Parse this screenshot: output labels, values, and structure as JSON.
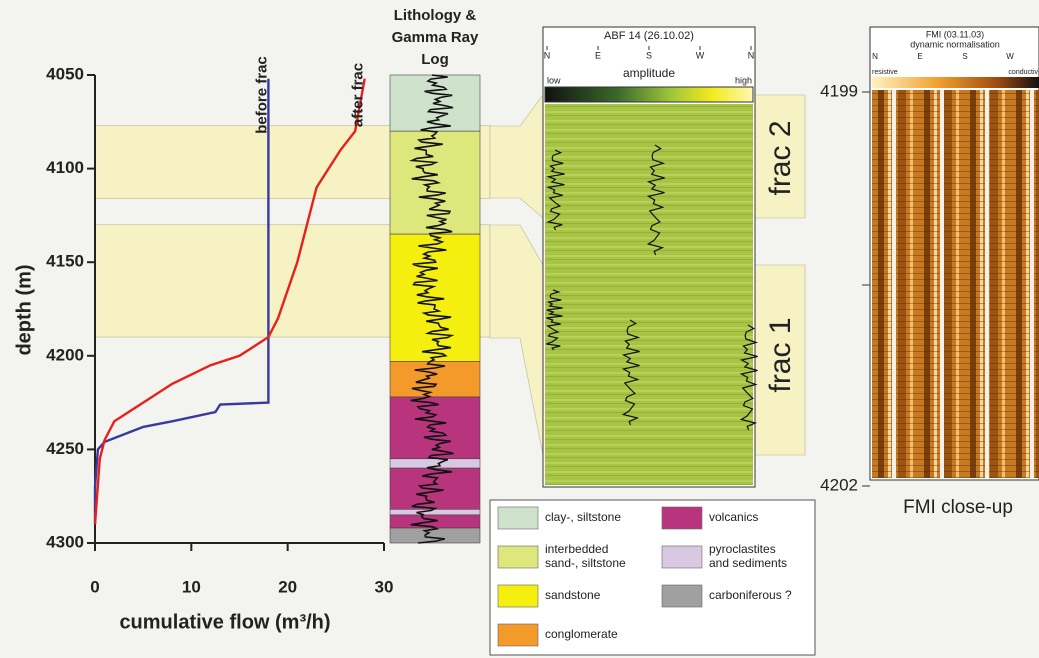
{
  "chart_data": {
    "type": "line",
    "xlabel": "cumulative flow (m³/h)",
    "ylabel": "depth (m)",
    "xlim": [
      0,
      30
    ],
    "ylim": [
      4050,
      4300
    ],
    "y_inverted": true,
    "xticks": [
      0,
      10,
      20,
      30
    ],
    "yticks": [
      4050,
      4100,
      4150,
      4200,
      4250,
      4300
    ],
    "shaded_depths": [
      [
        4077,
        4116
      ],
      [
        4130,
        4190
      ]
    ],
    "series": [
      {
        "name": "before frac",
        "color": "#3a3a9e",
        "x": [
          18,
          18,
          13,
          12.5,
          8,
          5,
          3,
          1,
          0.3,
          0,
          0
        ],
        "y": [
          4052,
          4225,
          4226,
          4230,
          4235,
          4238,
          4242,
          4246,
          4250,
          4270,
          4290
        ]
      },
      {
        "name": "after frac",
        "color": "#e8201c",
        "x": [
          28,
          27,
          25.5,
          23,
          21,
          19,
          18,
          15,
          12,
          8,
          5,
          2,
          1,
          0.5,
          0
        ],
        "y": [
          4052,
          4080,
          4090,
          4110,
          4150,
          4180,
          4190,
          4200,
          4205,
          4215,
          4225,
          4235,
          4245,
          4255,
          4290
        ]
      }
    ]
  },
  "lithology": {
    "title": [
      "Lithology &",
      "Gamma Ray",
      "Log"
    ],
    "layers": [
      {
        "top": 4050,
        "bottom": 4080,
        "color": "#cfe3cc"
      },
      {
        "top": 4080,
        "bottom": 4135,
        "color": "#dde77c"
      },
      {
        "top": 4135,
        "bottom": 4203,
        "color": "#f4ef0f"
      },
      {
        "top": 4203,
        "bottom": 4222,
        "color": "#f39a2a"
      },
      {
        "top": 4222,
        "bottom": 4255,
        "color": "#b8357d"
      },
      {
        "top": 4255,
        "bottom": 4260,
        "color": "#d9c8e2"
      },
      {
        "top": 4260,
        "bottom": 4282,
        "color": "#b8357d"
      },
      {
        "top": 4282,
        "bottom": 4285,
        "color": "#d9c8e2"
      },
      {
        "top": 4285,
        "bottom": 4292,
        "color": "#b8357d"
      },
      {
        "top": 4292,
        "bottom": 4300,
        "color": "#a0a0a0"
      }
    ]
  },
  "legend": [
    {
      "label": [
        "clay-, siltstone"
      ],
      "color": "#cfe3cc"
    },
    {
      "label": [
        "interbedded",
        "sand-, siltstone"
      ],
      "color": "#dde77c"
    },
    {
      "label": [
        "sandstone"
      ],
      "color": "#f4ef0f"
    },
    {
      "label": [
        "conglomerate"
      ],
      "color": "#f39a2a"
    },
    {
      "label": [
        "volcanics"
      ],
      "color": "#b8357d"
    },
    {
      "label": [
        "pyroclastites",
        "and sediments"
      ],
      "color": "#d9c8e2"
    },
    {
      "label": [
        "carboniferous ?"
      ],
      "color": "#a0a0a0"
    }
  ],
  "abf": {
    "title": "ABF 14 (26.10.02)",
    "compass": [
      "N",
      "E",
      "S",
      "W",
      "N"
    ],
    "colorbar_label": "amplitude",
    "low": "low",
    "high": "high"
  },
  "frac_labels": [
    "frac 2",
    "frac 1"
  ],
  "fmi": {
    "title": "FMI (03.11.03)",
    "subtitle": "dynamic normalisation",
    "compass": [
      "N",
      "E",
      "S",
      "W"
    ],
    "left": "resistive",
    "right": "conductiv",
    "depth_top": 4199,
    "depth_bottom": 4202,
    "caption": "FMI close-up"
  }
}
